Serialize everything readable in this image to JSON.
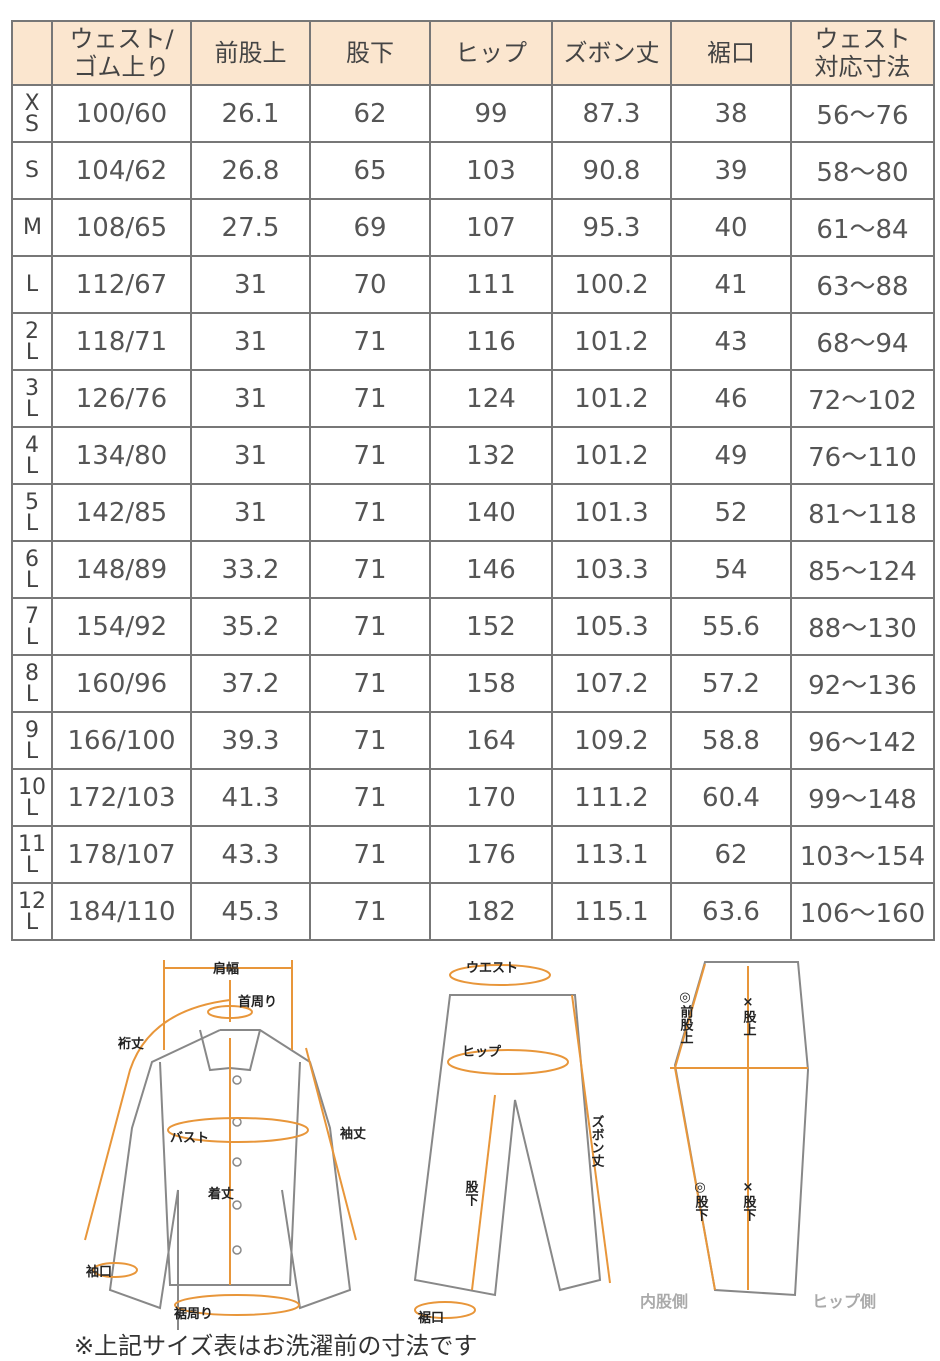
{
  "table": {
    "headers": [
      "",
      "ウェスト/\nゴム上り",
      "前股上",
      "股下",
      "ヒップ",
      "ズボン丈",
      "裾口",
      "ウェスト\n対応寸法"
    ],
    "rows": [
      [
        "XS",
        "100/60",
        "26.1",
        "62",
        "99",
        "87.3",
        "38",
        "56～76"
      ],
      [
        "S",
        "104/62",
        "26.8",
        "65",
        "103",
        "90.8",
        "39",
        "58～80"
      ],
      [
        "M",
        "108/65",
        "27.5",
        "69",
        "107",
        "95.3",
        "40",
        "61～84"
      ],
      [
        "L",
        "112/67",
        "31",
        "70",
        "111",
        "100.2",
        "41",
        "63～88"
      ],
      [
        "2L",
        "118/71",
        "31",
        "71",
        "116",
        "101.2",
        "43",
        "68～94"
      ],
      [
        "3L",
        "126/76",
        "31",
        "71",
        "124",
        "101.2",
        "46",
        "72～102"
      ],
      [
        "4L",
        "134/80",
        "31",
        "71",
        "132",
        "101.2",
        "49",
        "76～110"
      ],
      [
        "5L",
        "142/85",
        "31",
        "71",
        "140",
        "101.3",
        "52",
        "81～118"
      ],
      [
        "6L",
        "148/89",
        "33.2",
        "71",
        "146",
        "103.3",
        "54",
        "85～124"
      ],
      [
        "7L",
        "154/92",
        "35.2",
        "71",
        "152",
        "105.3",
        "55.6",
        "88～130"
      ],
      [
        "8L",
        "160/96",
        "37.2",
        "71",
        "158",
        "107.2",
        "57.2",
        "92～136"
      ],
      [
        "9L",
        "166/100",
        "39.3",
        "71",
        "164",
        "109.2",
        "58.8",
        "96～142"
      ],
      [
        "10L",
        "172/103",
        "41.3",
        "71",
        "170",
        "111.2",
        "60.4",
        "99～148"
      ],
      [
        "11L",
        "178/107",
        "43.3",
        "71",
        "176",
        "113.1",
        "62",
        "103～154"
      ],
      [
        "12L",
        "184/110",
        "45.3",
        "71",
        "182",
        "115.1",
        "63.6",
        "106～160"
      ]
    ]
  },
  "shirt_diagram": {
    "shoulder": "肩幅",
    "neck": "首周り",
    "yuki": "裄丈",
    "bust": "バスト",
    "sleeve": "袖丈",
    "length": "着丈",
    "cuff": "袖口",
    "hem": "裾周り"
  },
  "pants_diagram": {
    "waist": "ウエスト",
    "hip": "ヒップ",
    "inseam": "股下",
    "length": "ズボン丈",
    "hem": "裾口"
  },
  "side_diagram": {
    "front_rise": "◎前股上",
    "rise": "×股上",
    "inseam_o": "◎股下",
    "inseam_x": "×股下",
    "inner": "内股側",
    "hip_side": "ヒップ側"
  },
  "accent_color": "#e8963a",
  "note": "※上記サイズ表はお洗濯前の寸法です"
}
